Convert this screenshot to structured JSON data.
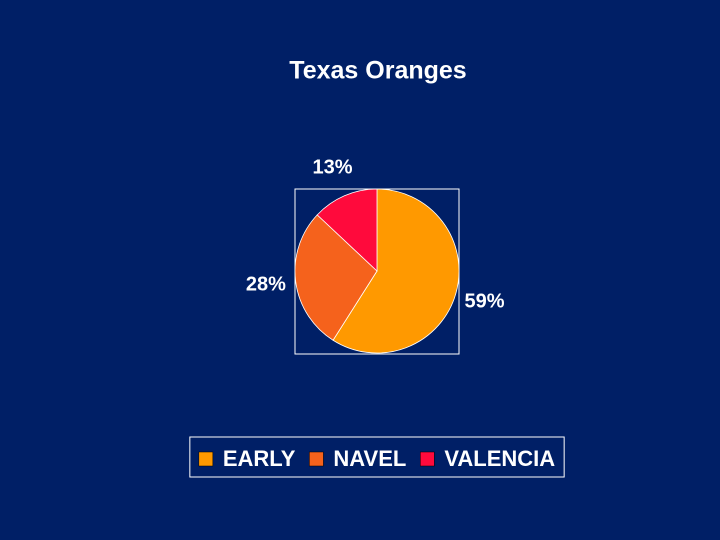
{
  "chart_data": {
    "type": "pie",
    "title": "Texas Oranges",
    "categories": [
      "EARLY",
      "NAVEL",
      "VALENCIA"
    ],
    "values": [
      59,
      28,
      13
    ],
    "value_labels": [
      "59%",
      "28%",
      "13%"
    ],
    "colors": [
      "#ff9900",
      "#f5621c",
      "#ff0a3c"
    ],
    "legend": "bottom"
  }
}
